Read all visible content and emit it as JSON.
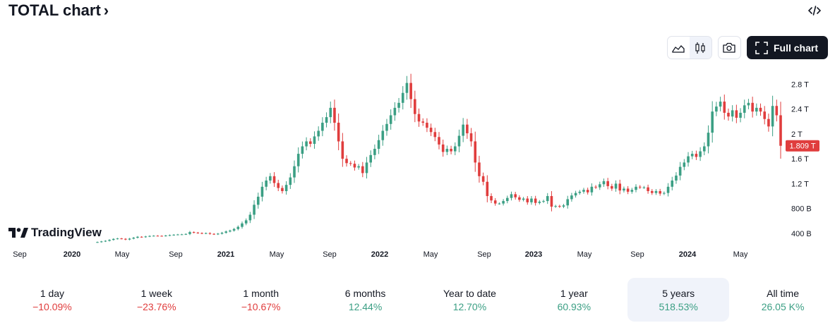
{
  "header": {
    "title": "TOTAL chart",
    "title_chevron": "›"
  },
  "toolbar": {
    "full_chart_label": "Full chart",
    "chart_type_active": "candles-icon"
  },
  "branding": {
    "logo_text": "TradingView"
  },
  "periods": [
    {
      "label": "1 day",
      "value": "−10.09%",
      "trend": "neg"
    },
    {
      "label": "1 week",
      "value": "−23.76%",
      "trend": "neg"
    },
    {
      "label": "1 month",
      "value": "−10.67%",
      "trend": "neg"
    },
    {
      "label": "6 months",
      "value": "12.44%",
      "trend": "pos"
    },
    {
      "label": "Year to date",
      "value": "12.70%",
      "trend": "pos"
    },
    {
      "label": "1 year",
      "value": "60.93%",
      "trend": "pos"
    },
    {
      "label": "5 years",
      "value": "518.53%",
      "trend": "pos",
      "selected": true
    },
    {
      "label": "All time",
      "value": "26.05 K%",
      "trend": "pos"
    }
  ],
  "colors": {
    "up": "#3b9f84",
    "down": "#e03d3d",
    "text": "#131722",
    "axis_text": "#131722"
  },
  "chart_data": {
    "type": "candlestick",
    "title": "",
    "x_tick_labels": [
      "Sep",
      "2020",
      "May",
      "Sep",
      "2021",
      "May",
      "Sep",
      "2022",
      "May",
      "Sep",
      "2023",
      "May",
      "Sep",
      "2024",
      "May"
    ],
    "x_tick_bold": [
      false,
      true,
      false,
      false,
      true,
      false,
      false,
      true,
      false,
      false,
      true,
      false,
      false,
      true,
      false
    ],
    "y_tick_labels": [
      "400 B",
      "800 B",
      "1.2 T",
      "1.6 T",
      "2 T",
      "2.4 T",
      "2.8 T"
    ],
    "y_tick_values": [
      400,
      800,
      1200,
      1600,
      2000,
      2400,
      2800
    ],
    "ylim": [
      240,
      3020
    ],
    "unit": "B USD",
    "last_price_label": "1.809 T",
    "last_price_value": 1809,
    "legend": "none",
    "grid": false,
    "closes": [
      260,
      270,
      280,
      295,
      310,
      318,
      312,
      300,
      315,
      330,
      345,
      340,
      350,
      358,
      362,
      360,
      358,
      365,
      372,
      378,
      382,
      384,
      390,
      420,
      412,
      405,
      398,
      404,
      392,
      385,
      395,
      410,
      430,
      445,
      470,
      505,
      560,
      610,
      700,
      860,
      990,
      1150,
      1250,
      1320,
      1210,
      1130,
      1080,
      1180,
      1300,
      1480,
      1680,
      1800,
      1880,
      1840,
      1960,
      2050,
      2180,
      2270,
      2420,
      2180,
      1880,
      1600,
      1530,
      1520,
      1460,
      1480,
      1370,
      1540,
      1660,
      1760,
      1900,
      2050,
      2160,
      2300,
      2420,
      2500,
      2660,
      2820,
      2560,
      2320,
      2200,
      2180,
      2100,
      2030,
      1950,
      1830,
      1710,
      1760,
      1720,
      1800,
      1970,
      2150,
      2010,
      1880,
      1540,
      1320,
      1230,
      1000,
      930,
      880,
      880,
      920,
      970,
      1030,
      980,
      940,
      960,
      900,
      960,
      890,
      910,
      920,
      1000,
      830,
      840,
      830,
      850,
      950,
      1010,
      1050,
      1070,
      1100,
      1060,
      1150,
      1140,
      1190,
      1240,
      1160,
      1120,
      1200,
      1090,
      1120,
      1070,
      1100,
      1150,
      1140,
      1140,
      1080,
      1050,
      1080,
      1040,
      1050,
      1150,
      1250,
      1330,
      1470,
      1540,
      1640,
      1680,
      1630,
      1720,
      1800,
      2020,
      2360,
      2440,
      2520,
      2340,
      2280,
      2380,
      2260,
      2340,
      2460,
      2500,
      2360,
      2420,
      2360,
      2240,
      2120,
      2450,
      2300,
      1809
    ]
  }
}
